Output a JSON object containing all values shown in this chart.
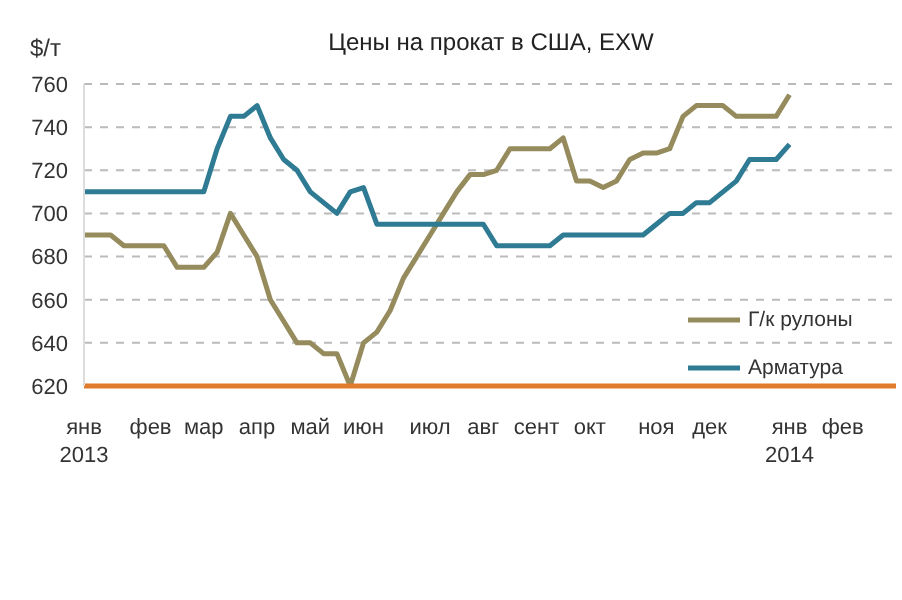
{
  "chart_data": {
    "type": "line",
    "title": "Цены на прокат в США, EXW",
    "ylabel": "$/т",
    "categories": [
      "янв\n2013",
      null,
      null,
      null,
      null,
      "фев",
      null,
      null,
      null,
      "мар",
      null,
      null,
      null,
      "апр",
      null,
      null,
      null,
      "май",
      null,
      null,
      null,
      "июн",
      null,
      null,
      null,
      null,
      "июл",
      null,
      null,
      null,
      "авг",
      null,
      null,
      null,
      "сент",
      null,
      null,
      null,
      "окт",
      null,
      null,
      null,
      null,
      "ноя",
      null,
      null,
      null,
      "дек",
      null,
      null,
      null,
      null,
      null,
      "янв\n2014",
      null,
      null,
      null,
      "фев",
      null,
      null,
      null,
      null
    ],
    "series": [
      {
        "name": "Г/к рулоны",
        "color": "#958b5c",
        "values": [
          690,
          690,
          690,
          685,
          685,
          685,
          685,
          675,
          675,
          675,
          682,
          700,
          690,
          680,
          660,
          650,
          640,
          640,
          635,
          635,
          620,
          640,
          645,
          655,
          670,
          680,
          690,
          700,
          710,
          718,
          718,
          720,
          730,
          730,
          730,
          730,
          735,
          715,
          715,
          712,
          715,
          725,
          728,
          728,
          730,
          745,
          750,
          750,
          750,
          745,
          745,
          745,
          745,
          755,
          null,
          null,
          null,
          null,
          null,
          null,
          null,
          null
        ]
      },
      {
        "name": "Арматура",
        "color": "#2e7b93",
        "values": [
          710,
          710,
          710,
          710,
          710,
          710,
          710,
          710,
          710,
          710,
          730,
          745,
          745,
          750,
          735,
          725,
          720,
          710,
          705,
          700,
          710,
          712,
          695,
          695,
          695,
          695,
          695,
          695,
          695,
          695,
          695,
          685,
          685,
          685,
          685,
          685,
          690,
          690,
          690,
          690,
          690,
          690,
          690,
          695,
          700,
          700,
          705,
          705,
          710,
          715,
          725,
          725,
          725,
          732,
          null,
          null,
          null,
          null,
          null,
          null,
          null,
          null
        ]
      }
    ],
    "ylim": [
      620,
      760
    ],
    "yticks": [
      620,
      640,
      660,
      680,
      700,
      720,
      740,
      760
    ],
    "grid": "y",
    "legend": "right",
    "line_style": "solid",
    "marker": "none"
  }
}
